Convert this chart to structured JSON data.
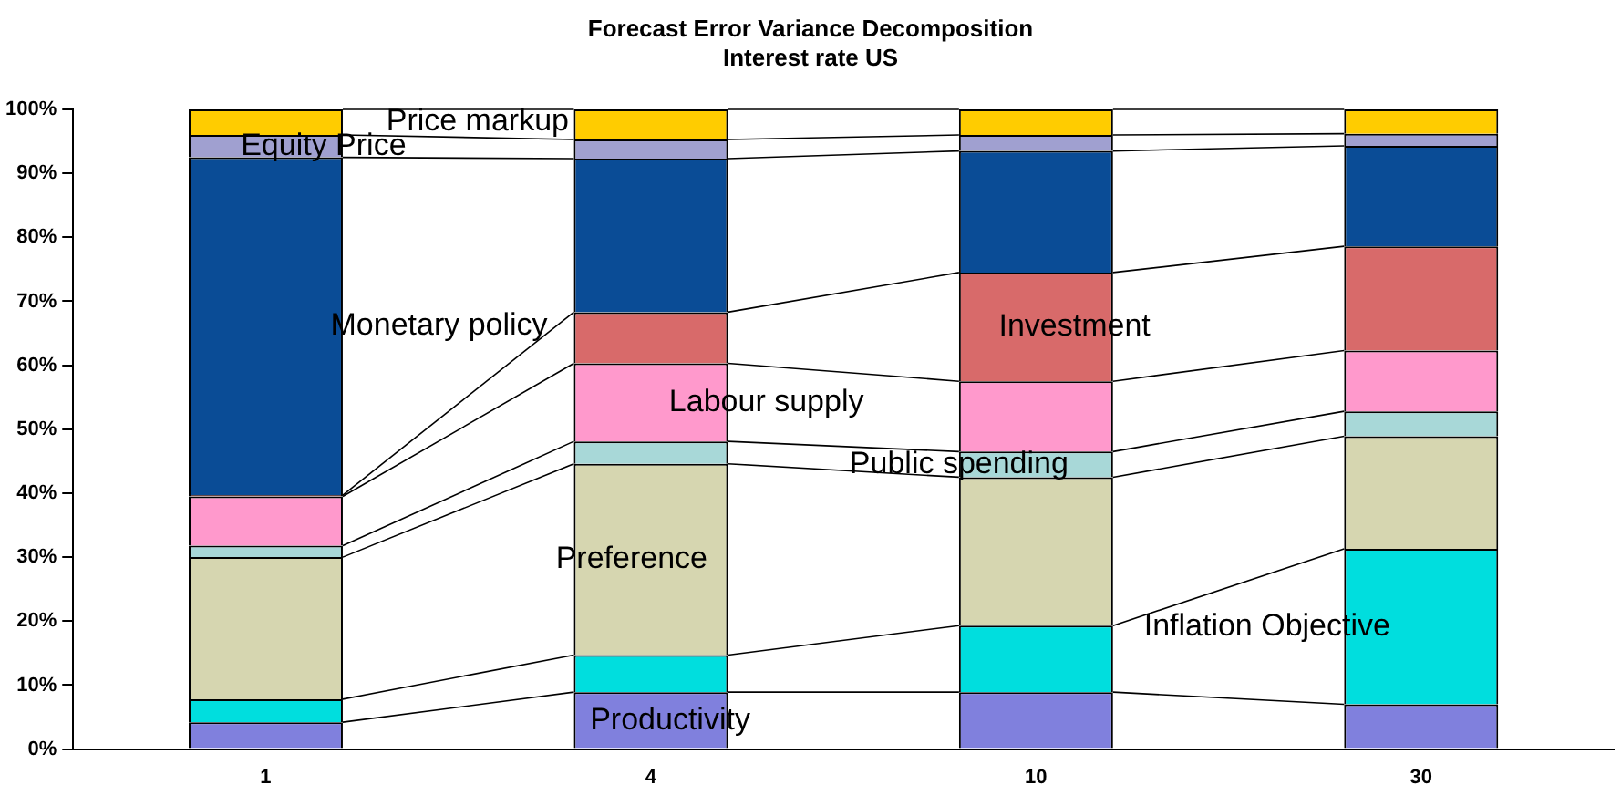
{
  "chart_data": {
    "type": "bar",
    "title": "Forecast Error Variance Decomposition",
    "subtitle": "Interest rate US",
    "categories": [
      "1",
      "4",
      "10",
      "30"
    ],
    "stacked": true,
    "legend": false,
    "grid": false,
    "ylim": [
      0,
      100
    ],
    "yticks": [
      {
        "value": 0,
        "label": "0%"
      },
      {
        "value": 10,
        "label": "10%"
      },
      {
        "value": 20,
        "label": "20%"
      },
      {
        "value": 30,
        "label": "30%"
      },
      {
        "value": 40,
        "label": "40%"
      },
      {
        "value": 50,
        "label": "50%"
      },
      {
        "value": 60,
        "label": "60%"
      },
      {
        "value": 70,
        "label": "70%"
      },
      {
        "value": 80,
        "label": "80%"
      },
      {
        "value": 90,
        "label": "90%"
      },
      {
        "value": 100,
        "label": "100%"
      }
    ],
    "series": [
      {
        "name": "Productivity",
        "color": "#8080dd",
        "values": [
          4.2,
          8.9,
          8.9,
          7.0
        ]
      },
      {
        "name": "Inflation Objective",
        "color": "#00dede",
        "values": [
          3.6,
          5.8,
          10.4,
          24.3
        ]
      },
      {
        "name": "Preference",
        "color": "#d6d6b0",
        "values": [
          22.2,
          29.9,
          23.2,
          17.6
        ]
      },
      {
        "name": "Public spending",
        "color": "#a8d8d8",
        "values": [
          1.8,
          3.5,
          4.0,
          3.9
        ]
      },
      {
        "name": "Labour supply",
        "color": "#ff99cc",
        "values": [
          7.7,
          12.2,
          11.0,
          9.5
        ]
      },
      {
        "name": "Investment",
        "color": "#d86a6a",
        "values": [
          0.2,
          8.0,
          17.0,
          16.3
        ]
      },
      {
        "name": "Monetary policy",
        "color": "#0a4c96",
        "values": [
          52.8,
          24.0,
          19.0,
          15.7
        ]
      },
      {
        "name": "Equity Price",
        "color": "#a0a0d0",
        "values": [
          3.5,
          3.0,
          2.5,
          1.9
        ]
      },
      {
        "name": "Price markup",
        "color": "#ffcc00",
        "values": [
          4.0,
          4.7,
          4.0,
          3.8
        ]
      }
    ]
  }
}
